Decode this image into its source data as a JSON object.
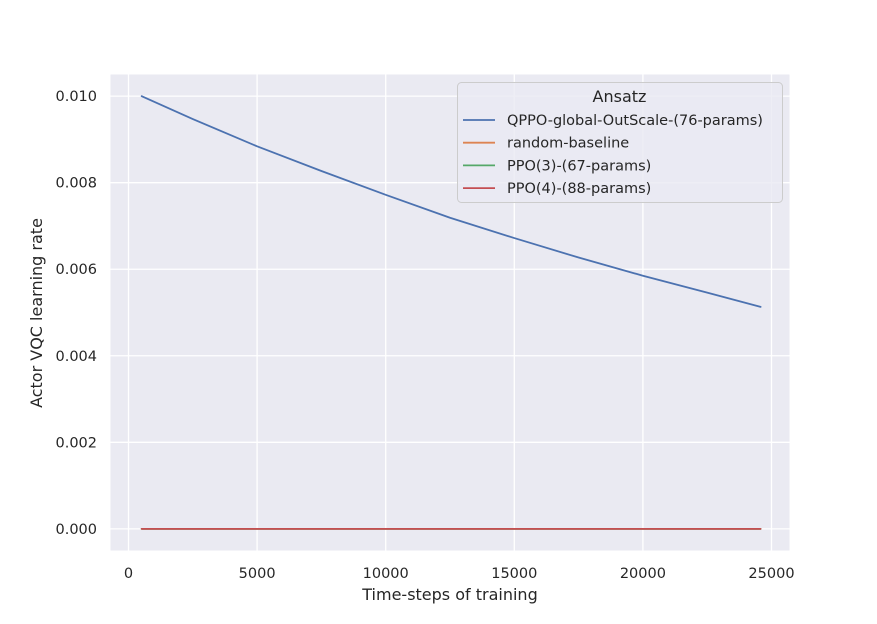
{
  "chart_data": {
    "type": "line",
    "title": "",
    "xlabel": "Time-steps of training",
    "ylabel": "Actor VQC learning rate",
    "xlim": [
      -700,
      25700
    ],
    "ylim": [
      -0.0005,
      0.0105
    ],
    "x_ticks": [
      0,
      5000,
      10000,
      15000,
      20000,
      25000
    ],
    "x_tick_labels": [
      "0",
      "5000",
      "10000",
      "15000",
      "20000",
      "25000"
    ],
    "y_ticks": [
      0.0,
      0.002,
      0.004,
      0.006,
      0.008,
      0.01
    ],
    "y_tick_labels": [
      "0.000",
      "0.002",
      "0.004",
      "0.006",
      "0.008",
      "0.010"
    ],
    "grid": true,
    "legend": {
      "title": "Ansatz",
      "placement": "top-right"
    },
    "series": [
      {
        "name": "QPPO-global-OutScale-(76-params)",
        "color": "#4c72b0",
        "x": [
          512,
          2500,
          5000,
          7500,
          10000,
          12500,
          15000,
          17500,
          20000,
          22500,
          24576
        ],
        "y": [
          0.01,
          0.00947,
          0.00884,
          0.00827,
          0.00772,
          0.00719,
          0.00672,
          0.00627,
          0.00585,
          0.00546,
          0.00513
        ]
      },
      {
        "name": "random-baseline",
        "color": "#dd8452",
        "x": [
          512,
          24576
        ],
        "y": [
          0.0,
          0.0
        ]
      },
      {
        "name": "PPO(3)-(67-params)",
        "color": "#55a868",
        "x": [
          512,
          24576
        ],
        "y": [
          0.0,
          0.0
        ]
      },
      {
        "name": "PPO(4)-(88-params)",
        "color": "#c44e52",
        "x": [
          512,
          24576
        ],
        "y": [
          0.0,
          0.0
        ]
      }
    ]
  }
}
